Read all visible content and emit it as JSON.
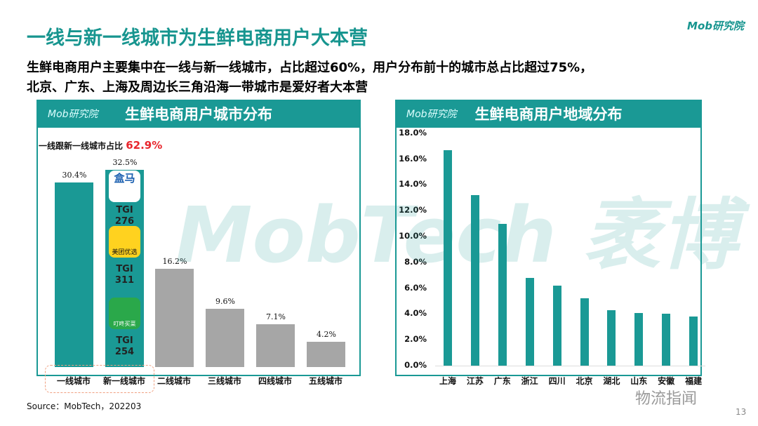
{
  "header": {
    "title": "一线与新一线城市为生鲜电商用户大本营",
    "brand": "Mob研究院"
  },
  "subtitle": [
    "生鲜电商用户主要集中在一线与新一线城市，占比超过60%，用户分布前十的城市总占比超过75%，",
    "北京、广东、上海及周边长三角沿海一带城市是爱好者大本营"
  ],
  "watermark": "MobTech 袤博",
  "colors": {
    "accent": "#1a9995",
    "gray_bar": "#a6a6a6",
    "highlight": "#e8262d"
  },
  "chart_data": [
    {
      "type": "bar",
      "title": "生鲜电商用户城市分布",
      "logo": "Mob研究院",
      "annotation": {
        "label": "一线跟新一线城市占比",
        "value": "62.9%"
      },
      "categories": [
        "一线城市",
        "新一线城市",
        "二线城市",
        "三线城市",
        "四线城市",
        "五线城市"
      ],
      "values": [
        30.4,
        32.5,
        16.2,
        9.6,
        7.1,
        4.2
      ],
      "data_labels": [
        "30.4%",
        "32.5%",
        "16.2%",
        "9.6%",
        "7.1%",
        "4.2%"
      ],
      "apps": [
        {
          "name": "盒马",
          "tgi_label": "TGI",
          "tgi_value": "276"
        },
        {
          "name": "美团优选",
          "tgi_label": "TGI",
          "tgi_value": "311"
        },
        {
          "name": "叮咚买菜",
          "tgi_label": "TGI",
          "tgi_value": "254"
        }
      ]
    },
    {
      "type": "bar",
      "title": "生鲜电商用户地域分布",
      "logo": "Mob研究院",
      "categories": [
        "上海",
        "江苏",
        "广东",
        "浙江",
        "四川",
        "北京",
        "湖北",
        "山东",
        "安徽",
        "福建"
      ],
      "values": [
        16.7,
        13.2,
        11.0,
        6.8,
        6.2,
        5.2,
        4.3,
        4.1,
        4.0,
        3.8
      ],
      "ylim": [
        0,
        18
      ],
      "yticks": [
        "0.0%",
        "2.0%",
        "4.0%",
        "6.0%",
        "8.0%",
        "10.0%",
        "12.0%",
        "14.0%",
        "16.0%",
        "18.0%"
      ]
    }
  ],
  "footer": {
    "source": "Source：MobTech，202203",
    "page": "13",
    "wechat": "物流指闻"
  }
}
